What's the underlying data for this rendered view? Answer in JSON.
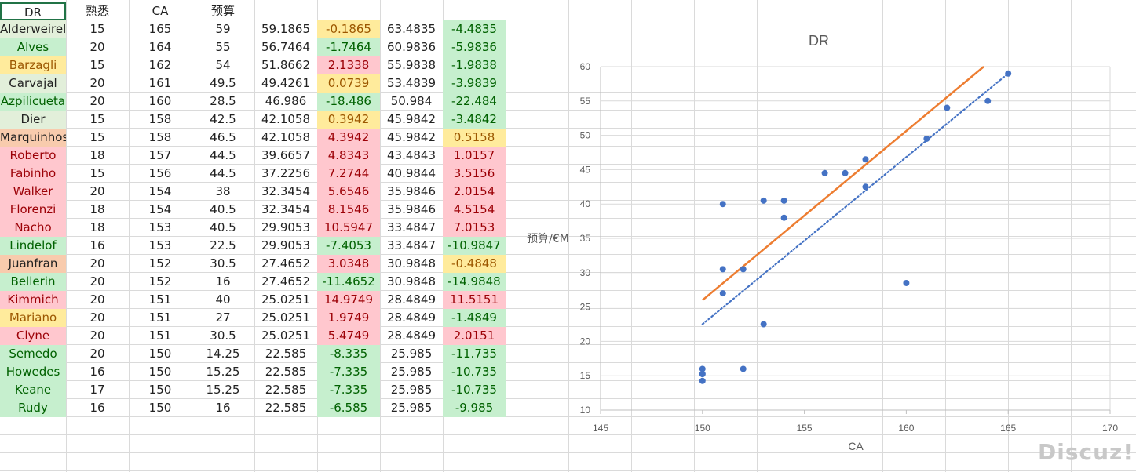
{
  "headers": [
    "DR",
    "熟悉",
    "CA",
    "预算"
  ],
  "rows": [
    {
      "name": "Alderweireld",
      "fam": "15",
      "ca": "165",
      "budget": "59",
      "pred": "59.1865",
      "diff": "-0.1865",
      "pred2": "63.4835",
      "diff2": "-4.4835",
      "name_bg": "lg",
      "diff_bg": "y",
      "diff2_bg": "g"
    },
    {
      "name": "Alves",
      "fam": "20",
      "ca": "164",
      "budget": "55",
      "pred": "56.7464",
      "diff": "-1.7464",
      "pred2": "60.9836",
      "diff2": "-5.9836",
      "name_bg": "g",
      "diff_bg": "g",
      "diff2_bg": "g"
    },
    {
      "name": "Barzagli",
      "fam": "15",
      "ca": "162",
      "budget": "54",
      "pred": "51.8662",
      "diff": "2.1338",
      "pred2": "55.9838",
      "diff2": "-1.9838",
      "name_bg": "y",
      "diff_bg": "r",
      "diff2_bg": "g"
    },
    {
      "name": "Carvajal",
      "fam": "20",
      "ca": "161",
      "budget": "49.5",
      "pred": "49.4261",
      "diff": "0.0739",
      "pred2": "53.4839",
      "diff2": "-3.9839",
      "name_bg": "lg",
      "diff_bg": "y",
      "diff2_bg": "g"
    },
    {
      "name": "Azpilicueta",
      "fam": "20",
      "ca": "160",
      "budget": "28.5",
      "pred": "46.986",
      "diff": "-18.486",
      "pred2": "50.984",
      "diff2": "-22.484",
      "name_bg": "g",
      "diff_bg": "g",
      "diff2_bg": "g"
    },
    {
      "name": "Dier",
      "fam": "15",
      "ca": "158",
      "budget": "42.5",
      "pred": "42.1058",
      "diff": "0.3942",
      "pred2": "45.9842",
      "diff2": "-3.4842",
      "name_bg": "lg",
      "diff_bg": "y",
      "diff2_bg": "g"
    },
    {
      "name": "Marquinhos",
      "fam": "15",
      "ca": "158",
      "budget": "46.5",
      "pred": "42.1058",
      "diff": "4.3942",
      "pred2": "45.9842",
      "diff2": "0.5158",
      "name_bg": "o",
      "diff_bg": "r",
      "diff2_bg": "y"
    },
    {
      "name": "Roberto",
      "fam": "18",
      "ca": "157",
      "budget": "44.5",
      "pred": "39.6657",
      "diff": "4.8343",
      "pred2": "43.4843",
      "diff2": "1.0157",
      "name_bg": "r",
      "diff_bg": "r",
      "diff2_bg": "r"
    },
    {
      "name": "Fabinho",
      "fam": "15",
      "ca": "156",
      "budget": "44.5",
      "pred": "37.2256",
      "diff": "7.2744",
      "pred2": "40.9844",
      "diff2": "3.5156",
      "name_bg": "r",
      "diff_bg": "r",
      "diff2_bg": "r"
    },
    {
      "name": "Walker",
      "fam": "20",
      "ca": "154",
      "budget": "38",
      "pred": "32.3454",
      "diff": "5.6546",
      "pred2": "35.9846",
      "diff2": "2.0154",
      "name_bg": "r",
      "diff_bg": "r",
      "diff2_bg": "r"
    },
    {
      "name": "Florenzi",
      "fam": "18",
      "ca": "154",
      "budget": "40.5",
      "pred": "32.3454",
      "diff": "8.1546",
      "pred2": "35.9846",
      "diff2": "4.5154",
      "name_bg": "r",
      "diff_bg": "r",
      "diff2_bg": "r"
    },
    {
      "name": "Nacho",
      "fam": "18",
      "ca": "153",
      "budget": "40.5",
      "pred": "29.9053",
      "diff": "10.5947",
      "pred2": "33.4847",
      "diff2": "7.0153",
      "name_bg": "r",
      "diff_bg": "r",
      "diff2_bg": "r"
    },
    {
      "name": "Lindelof",
      "fam": "16",
      "ca": "153",
      "budget": "22.5",
      "pred": "29.9053",
      "diff": "-7.4053",
      "pred2": "33.4847",
      "diff2": "-10.9847",
      "name_bg": "g",
      "diff_bg": "g",
      "diff2_bg": "g"
    },
    {
      "name": "Juanfran",
      "fam": "20",
      "ca": "152",
      "budget": "30.5",
      "pred": "27.4652",
      "diff": "3.0348",
      "pred2": "30.9848",
      "diff2": "-0.4848",
      "name_bg": "o",
      "diff_bg": "r",
      "diff2_bg": "y"
    },
    {
      "name": "Bellerin",
      "fam": "20",
      "ca": "152",
      "budget": "16",
      "pred": "27.4652",
      "diff": "-11.4652",
      "pred2": "30.9848",
      "diff2": "-14.9848",
      "name_bg": "g",
      "diff_bg": "g",
      "diff2_bg": "g"
    },
    {
      "name": "Kimmich",
      "fam": "20",
      "ca": "151",
      "budget": "40",
      "pred": "25.0251",
      "diff": "14.9749",
      "pred2": "28.4849",
      "diff2": "11.5151",
      "name_bg": "r",
      "diff_bg": "r",
      "diff2_bg": "r"
    },
    {
      "name": "Mariano",
      "fam": "20",
      "ca": "151",
      "budget": "27",
      "pred": "25.0251",
      "diff": "1.9749",
      "pred2": "28.4849",
      "diff2": "-1.4849",
      "name_bg": "y",
      "diff_bg": "r",
      "diff2_bg": "g"
    },
    {
      "name": "Clyne",
      "fam": "20",
      "ca": "151",
      "budget": "30.5",
      "pred": "25.0251",
      "diff": "5.4749",
      "pred2": "28.4849",
      "diff2": "2.0151",
      "name_bg": "r",
      "diff_bg": "r",
      "diff2_bg": "r"
    },
    {
      "name": "Semedo",
      "fam": "20",
      "ca": "150",
      "budget": "14.25",
      "pred": "22.585",
      "diff": "-8.335",
      "pred2": "25.985",
      "diff2": "-11.735",
      "name_bg": "g",
      "diff_bg": "g",
      "diff2_bg": "g"
    },
    {
      "name": "Howedes",
      "fam": "16",
      "ca": "150",
      "budget": "15.25",
      "pred": "22.585",
      "diff": "-7.335",
      "pred2": "25.985",
      "diff2": "-10.735",
      "name_bg": "g",
      "diff_bg": "g",
      "diff2_bg": "g"
    },
    {
      "name": "Keane",
      "fam": "17",
      "ca": "150",
      "budget": "15.25",
      "pred": "22.585",
      "diff": "-7.335",
      "pred2": "25.985",
      "diff2": "-10.735",
      "name_bg": "g",
      "diff_bg": "g",
      "diff2_bg": "g"
    },
    {
      "name": "Rudy",
      "fam": "16",
      "ca": "150",
      "budget": "16",
      "pred": "22.585",
      "diff": "-6.585",
      "pred2": "25.985",
      "diff2": "-9.985",
      "name_bg": "g",
      "diff_bg": "g",
      "diff2_bg": "g"
    }
  ],
  "colors": {
    "green_fill": "#C6EFCE",
    "green_text": "#006100",
    "yellow_fill": "#FFEB9C",
    "yellow_text": "#9C5700",
    "red_fill": "#FFC7CE",
    "red_text": "#9C0006",
    "orange_fill": "#F8CBAD",
    "light_green_fill": "#E2EFDA",
    "selection": "#217346",
    "point": "#4472C4",
    "trend1": "#ED7D31",
    "trend2": "#4472C4"
  },
  "chart_data": {
    "type": "scatter",
    "title": "DR",
    "xlabel": "CA",
    "ylabel": "预算/€M",
    "xlim": [
      145,
      170
    ],
    "ylim": [
      10,
      60
    ],
    "xticks": [
      145,
      150,
      155,
      160,
      165,
      170
    ],
    "yticks": [
      10,
      15,
      20,
      25,
      30,
      35,
      40,
      45,
      50,
      55,
      60
    ],
    "grid": "horizontal",
    "points": [
      [
        165,
        59
      ],
      [
        164,
        55
      ],
      [
        162,
        54
      ],
      [
        161,
        49.5
      ],
      [
        160,
        28.5
      ],
      [
        158,
        42.5
      ],
      [
        158,
        46.5
      ],
      [
        157,
        44.5
      ],
      [
        156,
        44.5
      ],
      [
        154,
        38
      ],
      [
        154,
        40.5
      ],
      [
        153,
        40.5
      ],
      [
        153,
        22.5
      ],
      [
        152,
        30.5
      ],
      [
        152,
        16
      ],
      [
        151,
        40
      ],
      [
        151,
        27
      ],
      [
        151,
        30.5
      ],
      [
        150,
        14.25
      ],
      [
        150,
        15.25
      ],
      [
        150,
        15.25
      ],
      [
        150,
        16
      ]
    ],
    "trendlines": [
      {
        "style": "solid",
        "color": "#ED7D31",
        "from": [
          150,
          26
        ],
        "to": [
          163.8,
          60
        ]
      },
      {
        "style": "dotted",
        "color": "#4472C4",
        "from": [
          150,
          22.5
        ],
        "to": [
          165,
          59
        ]
      }
    ]
  },
  "watermark": "Discuz!"
}
